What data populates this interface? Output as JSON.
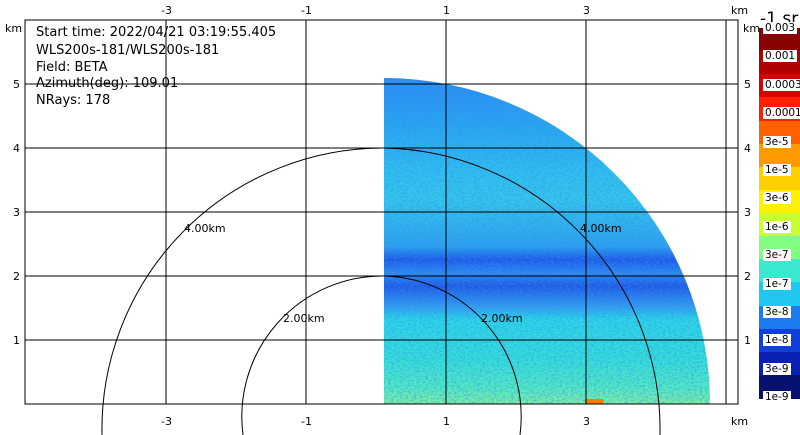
{
  "info": {
    "start_time": "Start time: 2022/04/21 03:19:55.405",
    "instrument": "WLS200s-181/WLS200s-181",
    "field": "Field: BETA",
    "azimuth": "Azimuth(deg): 109.01",
    "nrays": "NRays: 178"
  },
  "axes": {
    "x_ticks": [
      "-3",
      "-1",
      "1",
      "3"
    ],
    "y_ticks": [
      "1",
      "2",
      "3",
      "4",
      "5"
    ],
    "unit": "km"
  },
  "range_rings": [
    "2.00km",
    "4.00km"
  ],
  "colorbar": {
    "title": "-1 sr",
    "labels": [
      "0.003",
      "0.001",
      "0.0003",
      "0.0001",
      "3e-5",
      "1e-5",
      "3e-6",
      "1e-6",
      "3e-7",
      "1e-7",
      "3e-8",
      "1e-8",
      "3e-9",
      "1e-9"
    ],
    "colors": [
      "#8b0000",
      "#b00000",
      "#d80000",
      "#ff2000",
      "#ff6000",
      "#ff9a00",
      "#ffd000",
      "#fff200",
      "#c8ff30",
      "#80ff80",
      "#3ce8d0",
      "#1ec8f0",
      "#1a7cf0",
      "#1040d8",
      "#0a20b0",
      "#06106e"
    ]
  }
}
